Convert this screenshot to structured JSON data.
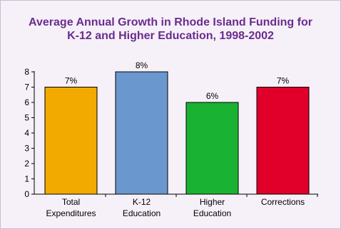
{
  "chart_data": {
    "type": "bar",
    "title_lines": [
      "Average Annual Growth in Rhode Island Funding for",
      "K-12 and Higher Education, 1998-2002"
    ],
    "categories": [
      [
        "Total",
        "Expenditures"
      ],
      [
        "K-12",
        "Education"
      ],
      [
        "Higher",
        "Education"
      ],
      [
        "Corrections"
      ]
    ],
    "values": [
      7,
      8,
      6,
      7
    ],
    "data_labels": [
      "7%",
      "8%",
      "6%",
      "7%"
    ],
    "bar_colors": [
      "#f2a900",
      "#6b97cf",
      "#19b233",
      "#e0002a"
    ],
    "ylim": [
      0,
      8
    ],
    "yticks": [
      "0",
      "1",
      "2",
      "3",
      "4",
      "5",
      "6",
      "7",
      "8"
    ],
    "xlabel": "",
    "ylabel": "",
    "grid": false,
    "title_color": "#6a2c8e"
  }
}
